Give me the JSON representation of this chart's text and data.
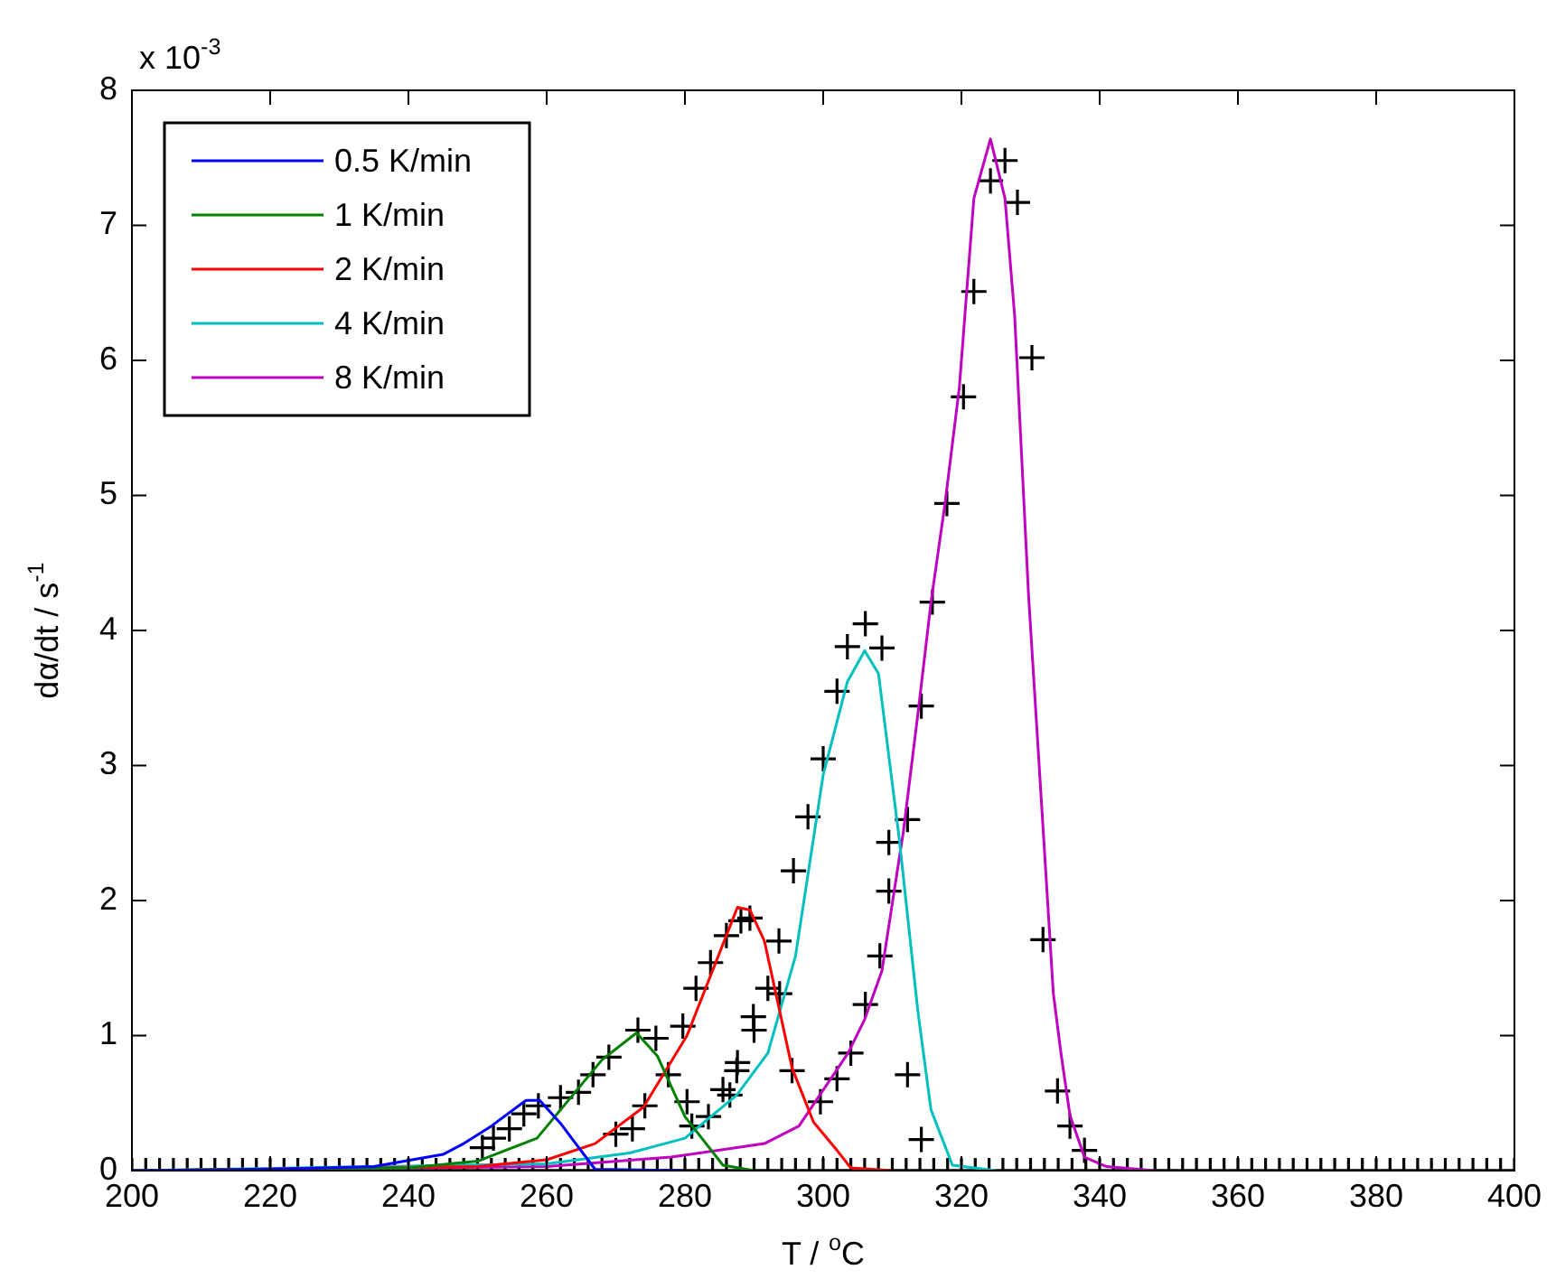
{
  "chart_data": {
    "type": "line",
    "xlabel": "T / $^{o}$C",
    "ylabel": "dα/dt / s$^{-1}$",
    "annotations": [
      "x 10$^{-3}$"
    ],
    "xlim": [
      200,
      400
    ],
    "xticks": [
      200,
      220,
      240,
      260,
      280,
      300,
      320,
      340,
      360,
      380,
      400
    ],
    "ylim": [
      0,
      8
    ],
    "yticks": [
      0,
      1,
      2,
      3,
      4,
      5,
      6,
      7,
      8
    ],
    "grid": false,
    "legend": "top left",
    "marker": "none",
    "line_style": "solid",
    "series": [
      {
        "name": "0.5 K/min",
        "color": "#0000ff",
        "x": [
          200,
          220,
          235,
          245,
          248,
          252,
          257,
          259,
          262,
          267,
          280
        ],
        "values": [
          0,
          0.01,
          0.03,
          0.12,
          0.2,
          0.33,
          0.52,
          0.52,
          0.35,
          0.01,
          0
        ]
      },
      {
        "name": "1 K/min",
        "color": "#008000",
        "x": [
          200,
          240,
          250,
          258.6,
          268,
          273,
          276,
          280,
          285.5,
          290
        ],
        "values": [
          0,
          0.02,
          0.07,
          0.24,
          0.82,
          1.02,
          0.85,
          0.4,
          0.04,
          0
        ]
      },
      {
        "name": "2 K/min",
        "color": "#ff0000",
        "x": [
          200,
          250,
          260,
          267,
          274,
          280.3,
          287.6,
          289.4,
          291.5,
          295.5,
          298.6,
          302,
          304,
          310
        ],
        "values": [
          0,
          0.03,
          0.08,
          0.2,
          0.47,
          1.0,
          1.95,
          1.93,
          1.7,
          0.76,
          0.36,
          0.15,
          0.02,
          0
        ]
      },
      {
        "name": "4 K/min",
        "color": "#00bfbf",
        "x": [
          200,
          260,
          272,
          280,
          287.5,
          292,
          296,
          300,
          303.5,
          306,
          308,
          311,
          313.7,
          315.6,
          318.7,
          325
        ],
        "values": [
          0,
          0.05,
          0.13,
          0.24,
          0.56,
          0.87,
          1.59,
          2.93,
          3.62,
          3.85,
          3.68,
          2.46,
          1.18,
          0.45,
          0.04,
          0
        ]
      },
      {
        "name": "8 K/min",
        "color": "#bf00bf",
        "x": [
          200,
          260,
          278,
          291.5,
          296.5,
          303.6,
          306,
          308.5,
          311.6,
          313.7,
          315.6,
          317.6,
          319.7,
          321.8,
          324.2,
          326.3,
          327.7,
          329.7,
          333.3,
          334.4,
          335.7,
          337.8,
          341,
          348
        ],
        "values": [
          0,
          0.03,
          0.1,
          0.2,
          0.33,
          0.87,
          1.12,
          1.48,
          2.51,
          3.38,
          4.21,
          4.93,
          5.8,
          7.2,
          7.64,
          7.2,
          6.33,
          4.27,
          1.31,
          0.87,
          0.41,
          0.1,
          0.03,
          0
        ]
      },
      {
        "type": "scatter",
        "marker": "cross",
        "color": "#000000",
        "x": [
          326.3,
          324.2,
          328.1,
          321.8,
          330.2,
          320.3,
          317.9,
          315.8,
          314.2,
          312.2,
          309.5,
          309.5,
          308.2,
          306.1,
          304,
          302,
          299.6,
          306.1,
          303.5,
          308.5,
          302,
          300,
          297.8,
          295.7,
          290,
          289.4,
          293.6,
          292,
          293.7,
          295.5,
          287.5,
          286.5,
          312.2,
          314.2,
          331.8,
          333.9,
          335.7,
          337.8,
          288.1,
          286,
          283.7,
          281.6,
          279.7,
          273.2,
          275.8,
          269,
          266.7,
          277.6,
          264.6,
          262,
          258.8,
          256.7,
          280.3,
          254.6,
          252.3,
          250.7,
          274.2,
          272.4,
          270,
          289.9,
          287.6,
          285.5,
          283.4,
          281
        ],
        "values": [
          7.48,
          7.33,
          7.17,
          6.51,
          6.02,
          5.73,
          4.94,
          4.21,
          3.44,
          2.6,
          2.43,
          2.07,
          1.59,
          1.23,
          0.87,
          0.68,
          0.51,
          4.05,
          3.88,
          3.87,
          3.55,
          3.05,
          2.62,
          2.22,
          1.04,
          1.87,
          1.7,
          1.35,
          1.31,
          0.74,
          0.74,
          0.56,
          0.71,
          0.23,
          1.71,
          0.59,
          0.33,
          0.15,
          1.85,
          1.74,
          1.54,
          1.35,
          1.07,
          1.04,
          0.98,
          0.84,
          0.71,
          0.71,
          0.58,
          0.54,
          0.48,
          0.42,
          0.51,
          0.31,
          0.24,
          0.17,
          0.48,
          0.31,
          0.27,
          1.14,
          0.8,
          0.6,
          0.4,
          0.33
        ]
      },
      {
        "type": "scatter",
        "marker": "cross",
        "color": "#000000",
        "x": [
          200,
          202,
          204,
          206,
          208,
          210,
          212,
          214,
          216,
          218,
          220,
          222,
          224,
          226,
          228,
          230,
          232,
          234,
          236,
          238,
          240,
          242,
          244,
          246,
          248,
          250,
          252,
          254,
          256,
          258,
          260,
          262,
          264,
          266,
          268,
          270,
          272,
          274,
          276,
          278,
          280,
          282,
          284,
          286,
          288,
          290,
          292,
          294,
          296,
          298,
          300,
          302,
          304,
          306,
          308,
          310,
          312,
          314,
          316,
          318,
          320,
          322,
          324,
          326,
          328,
          330,
          332,
          334,
          336,
          338,
          340,
          342,
          344,
          346,
          348,
          350,
          352,
          354,
          356,
          358,
          360,
          362,
          364,
          366,
          368,
          370,
          372,
          374,
          376,
          378,
          380,
          382,
          384,
          386,
          388,
          390,
          392,
          394,
          396,
          398,
          400
        ],
        "values": [
          0,
          0,
          0,
          0,
          0,
          0,
          0,
          0,
          0,
          0,
          0,
          0,
          0,
          0,
          0,
          0,
          0,
          0,
          0,
          0,
          0,
          0,
          0,
          0,
          0,
          0,
          0,
          0,
          0,
          0,
          0,
          0,
          0,
          0,
          0,
          0,
          0,
          0,
          0,
          0,
          0,
          0,
          0,
          0,
          0,
          0,
          0,
          0,
          0,
          0,
          0,
          0,
          0,
          0,
          0,
          0,
          0,
          0,
          0,
          0,
          0,
          0,
          0,
          0,
          0,
          0,
          0,
          0,
          0,
          0,
          0,
          0,
          0,
          0,
          0,
          0,
          0,
          0,
          0,
          0,
          0,
          0,
          0,
          0,
          0,
          0,
          0,
          0,
          0,
          0,
          0,
          0,
          0,
          0,
          0,
          0,
          0,
          0,
          0,
          0,
          0
        ]
      }
    ]
  }
}
